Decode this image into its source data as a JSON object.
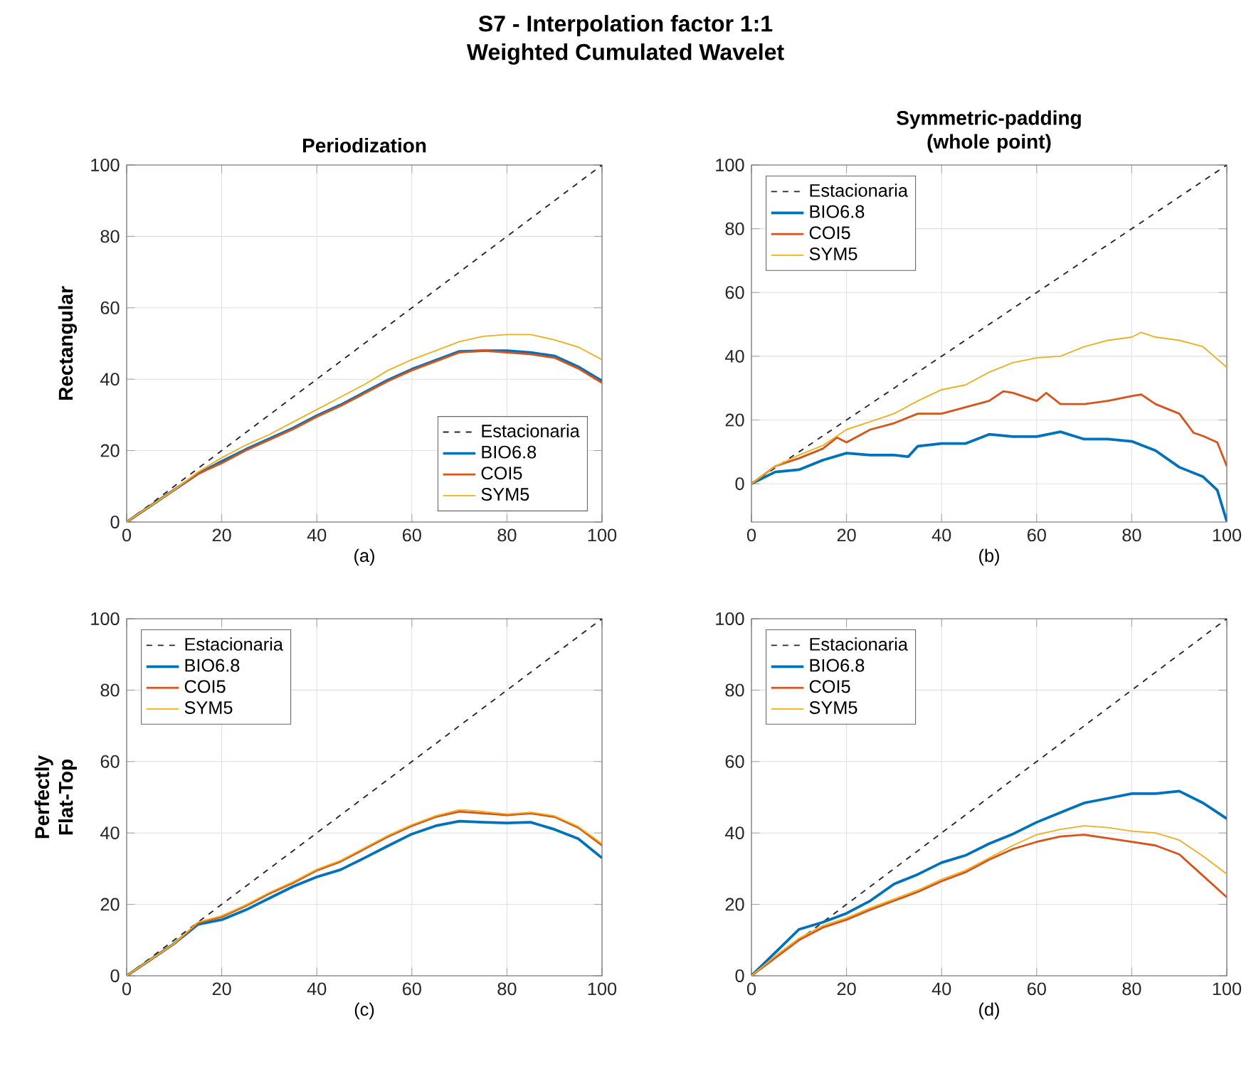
{
  "chart_data": [
    {
      "type": "line",
      "title": "Periodization",
      "ylabel": "Rectangular",
      "xlabel": "(a)",
      "annotations": [
        "S7 - Interpolation factor 1:1",
        "Weighted Cumulated Wavelet"
      ],
      "xlim": [
        0,
        100
      ],
      "ylim": [
        0,
        100
      ],
      "xticks": [
        0,
        20,
        40,
        60,
        80,
        100
      ],
      "yticks": [
        0,
        20,
        40,
        60,
        80,
        100
      ],
      "grid": true,
      "legend": "bottom right",
      "series": [
        {
          "name": "Estacionaria",
          "color": "#262626",
          "line_style": "dashed",
          "x": [
            0,
            100
          ],
          "values": [
            0,
            100
          ]
        },
        {
          "name": "BIO6.8",
          "color": "#0072bd",
          "x": [
            0,
            5,
            10,
            15,
            20,
            25,
            30,
            35,
            40,
            45,
            50,
            55,
            60,
            65,
            70,
            75,
            80,
            85,
            90,
            95,
            100
          ],
          "values": [
            0,
            4.5,
            9,
            13.5,
            17,
            20.3,
            23.3,
            26.3,
            29.8,
            32.8,
            36.3,
            39.8,
            42.8,
            45.3,
            47.8,
            48,
            48,
            47.5,
            46.5,
            43.5,
            39.5
          ]
        },
        {
          "name": "COI5",
          "color": "#d95319",
          "x": [
            0,
            5,
            10,
            15,
            20,
            25,
            30,
            35,
            40,
            45,
            50,
            55,
            60,
            65,
            70,
            75,
            80,
            85,
            90,
            95,
            100
          ],
          "values": [
            0,
            4.5,
            9,
            13.5,
            16.5,
            20,
            23,
            26,
            29.5,
            32.5,
            36,
            39.5,
            42.5,
            45,
            47.5,
            48,
            47.5,
            47,
            46,
            43,
            39
          ]
        },
        {
          "name": "SYM5",
          "color": "#edb120",
          "x": [
            0,
            5,
            10,
            15,
            20,
            25,
            30,
            35,
            40,
            45,
            50,
            55,
            60,
            65,
            70,
            75,
            80,
            85,
            90,
            95,
            100
          ],
          "values": [
            0,
            4.5,
            9,
            14,
            18,
            21.5,
            24.5,
            28,
            31.5,
            35,
            38.5,
            42.5,
            45.5,
            48,
            50.5,
            52,
            52.5,
            52.5,
            51,
            49,
            45.5
          ]
        }
      ]
    },
    {
      "type": "line",
      "title": "Symmetric-padding (whole point)",
      "xlabel": "(b)",
      "xlim": [
        0,
        100
      ],
      "ylim": [
        -12,
        100
      ],
      "xticks": [
        0,
        20,
        40,
        60,
        80,
        100
      ],
      "yticks": [
        0,
        20,
        40,
        60,
        80,
        100
      ],
      "grid": true,
      "legend": "top left",
      "series": [
        {
          "name": "Estacionaria",
          "color": "#262626",
          "line_style": "dashed",
          "x": [
            0,
            100
          ],
          "values": [
            0,
            100
          ]
        },
        {
          "name": "BIO6.8",
          "color": "#0072bd",
          "x": [
            0,
            5,
            10,
            15,
            20,
            25,
            30,
            33,
            35,
            40,
            45,
            50,
            55,
            60,
            65,
            70,
            75,
            80,
            85,
            90,
            95,
            98,
            100
          ],
          "values": [
            0,
            3.7,
            4.4,
            7.4,
            9.6,
            9,
            9,
            8.5,
            11.8,
            12.6,
            12.6,
            15.5,
            14.8,
            14.8,
            16.3,
            14,
            14,
            13.3,
            10.4,
            5.2,
            2.2,
            -2,
            -11.8
          ]
        },
        {
          "name": "COI5",
          "color": "#d95319",
          "x": [
            0,
            5,
            10,
            15,
            18,
            20,
            25,
            30,
            35,
            40,
            45,
            50,
            53,
            55,
            60,
            62,
            65,
            70,
            75,
            80,
            82,
            85,
            90,
            93,
            95,
            98,
            100
          ],
          "values": [
            0,
            5.5,
            8,
            11,
            14.5,
            13,
            17,
            19,
            22,
            22,
            24,
            26,
            29,
            28.5,
            26,
            28.5,
            25,
            25,
            26,
            27.5,
            28,
            25,
            22,
            16,
            15,
            13,
            5.5
          ]
        },
        {
          "name": "SYM5",
          "color": "#edb120",
          "x": [
            0,
            5,
            10,
            15,
            20,
            25,
            30,
            35,
            40,
            45,
            50,
            55,
            60,
            65,
            70,
            75,
            80,
            82,
            85,
            90,
            95,
            100
          ],
          "values": [
            0,
            5.5,
            9,
            12,
            17,
            19.5,
            22,
            26,
            29.5,
            31,
            35,
            38,
            39.5,
            40,
            43,
            45,
            46,
            47.5,
            46,
            45,
            43,
            36.5
          ]
        }
      ]
    },
    {
      "type": "line",
      "ylabel": "Perfectly Flat-Top",
      "xlabel": "(c)",
      "xlim": [
        0,
        100
      ],
      "ylim": [
        0,
        100
      ],
      "xticks": [
        0,
        20,
        40,
        60,
        80,
        100
      ],
      "yticks": [
        0,
        20,
        40,
        60,
        80,
        100
      ],
      "grid": true,
      "legend": "top left",
      "series": [
        {
          "name": "Estacionaria",
          "color": "#262626",
          "line_style": "dashed",
          "x": [
            0,
            100
          ],
          "values": [
            0,
            100
          ]
        },
        {
          "name": "BIO6.8",
          "color": "#0072bd",
          "x": [
            0,
            5,
            10,
            15,
            20,
            25,
            30,
            35,
            40,
            45,
            50,
            55,
            60,
            65,
            70,
            75,
            80,
            85,
            90,
            95,
            100
          ],
          "values": [
            0,
            4.5,
            9,
            14.4,
            15.7,
            18.4,
            21.7,
            25,
            27.7,
            29.7,
            33,
            36.4,
            39.7,
            42,
            43.3,
            43,
            42.8,
            43,
            41,
            38.4,
            33
          ]
        },
        {
          "name": "COI5",
          "color": "#d95319",
          "x": [
            0,
            5,
            10,
            15,
            20,
            25,
            30,
            35,
            40,
            45,
            50,
            55,
            60,
            65,
            70,
            75,
            80,
            85,
            90,
            95,
            100
          ],
          "values": [
            0,
            4.5,
            9,
            14.8,
            16.5,
            19.5,
            23,
            26,
            29.5,
            32,
            35.5,
            39,
            42,
            44.5,
            46,
            45.5,
            45,
            45.5,
            44.5,
            41.5,
            36.5
          ]
        },
        {
          "name": "SYM5",
          "color": "#edb120",
          "x": [
            0,
            5,
            10,
            15,
            20,
            25,
            30,
            35,
            40,
            45,
            50,
            55,
            60,
            65,
            70,
            75,
            80,
            85,
            90,
            95,
            100
          ],
          "values": [
            0,
            4.5,
            9,
            15,
            16.8,
            19.8,
            23.3,
            26.3,
            29.8,
            32.3,
            35.8,
            39.3,
            42.3,
            44.8,
            46.5,
            46,
            45.3,
            45.8,
            44.8,
            41.8,
            37
          ]
        }
      ]
    },
    {
      "type": "line",
      "xlabel": "(d)",
      "xlim": [
        0,
        100
      ],
      "ylim": [
        0,
        100
      ],
      "xticks": [
        0,
        20,
        40,
        60,
        80,
        100
      ],
      "yticks": [
        0,
        20,
        40,
        60,
        80,
        100
      ],
      "grid": true,
      "legend": "top left",
      "series": [
        {
          "name": "Estacionaria",
          "color": "#262626",
          "line_style": "dashed",
          "x": [
            0,
            100
          ],
          "values": [
            0,
            100
          ]
        },
        {
          "name": "BIO6.8",
          "color": "#0072bd",
          "x": [
            0,
            5,
            10,
            15,
            20,
            25,
            30,
            35,
            40,
            45,
            50,
            55,
            60,
            65,
            70,
            75,
            80,
            85,
            90,
            95,
            100
          ],
          "values": [
            0,
            6.5,
            13,
            15,
            17.5,
            21,
            25.7,
            28.4,
            31.7,
            33.7,
            37,
            39.7,
            43,
            45.7,
            48.4,
            49.7,
            51,
            51,
            51.7,
            48.4,
            44
          ]
        },
        {
          "name": "COI5",
          "color": "#d95319",
          "x": [
            0,
            5,
            10,
            15,
            20,
            25,
            30,
            35,
            40,
            45,
            50,
            55,
            60,
            65,
            70,
            75,
            80,
            85,
            90,
            95,
            100
          ],
          "values": [
            0,
            5,
            10,
            13.5,
            15.7,
            18.5,
            21,
            23.5,
            26.5,
            29,
            32.5,
            35.5,
            37.5,
            39,
            39.5,
            38.5,
            37.5,
            36.5,
            34,
            28,
            22
          ]
        },
        {
          "name": "SYM5",
          "color": "#edb120",
          "x": [
            0,
            5,
            10,
            15,
            20,
            25,
            30,
            35,
            40,
            45,
            50,
            55,
            60,
            65,
            70,
            75,
            80,
            85,
            90,
            95,
            100
          ],
          "values": [
            0,
            5.5,
            10.5,
            14,
            16.2,
            19,
            21.5,
            24,
            27,
            29.5,
            33,
            36.5,
            39.5,
            41,
            42,
            41.5,
            40.5,
            40,
            38,
            33.5,
            28.5
          ]
        }
      ]
    }
  ]
}
